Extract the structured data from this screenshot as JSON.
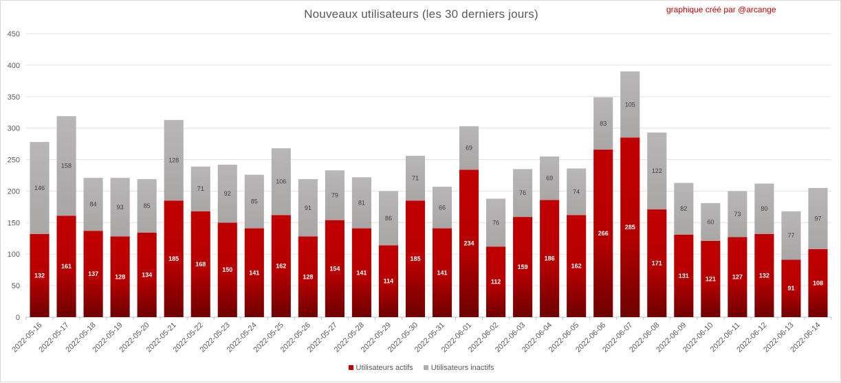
{
  "chart_data": {
    "type": "bar",
    "stacked": true,
    "title": "Nouveaux utilisateurs  (les 30 derniers  jours)",
    "credit": "graphique créé par @arcange",
    "categories": [
      "2022-05-16",
      "2022-05-17",
      "2022-05-18",
      "2022-05-19",
      "2022-05-20",
      "2022-05-21",
      "2022-05-22",
      "2022-05-23",
      "2022-05-24",
      "2022-05-25",
      "2022-05-26",
      "2022-05-27",
      "2022-05-28",
      "2022-05-29",
      "2022-05-30",
      "2022-05-31",
      "2022-06-01",
      "2022-06-02",
      "2022-06-03",
      "2022-06-04",
      "2022-06-05",
      "2022-06-06",
      "2022-06-07",
      "2022-06-08",
      "2022-06-09",
      "2022-06-10",
      "2022-06-11",
      "2022-06-12",
      "2022-06-13",
      "2022-06-14"
    ],
    "series": [
      {
        "name": "Utilisateurs actifs",
        "color": "#c00000",
        "values": [
          132,
          161,
          137,
          128,
          134,
          185,
          168,
          150,
          141,
          162,
          128,
          154,
          141,
          114,
          185,
          141,
          234,
          112,
          159,
          186,
          162,
          266,
          285,
          171,
          131,
          121,
          127,
          132,
          91,
          108
        ]
      },
      {
        "name": "Utilisateurs inactifs",
        "color": "#b0adad",
        "values": [
          146,
          158,
          84,
          93,
          85,
          128,
          71,
          92,
          85,
          106,
          91,
          79,
          81,
          86,
          71,
          66,
          69,
          76,
          76,
          69,
          74,
          83,
          105,
          122,
          82,
          60,
          73,
          80,
          77,
          97
        ]
      }
    ],
    "ylim": [
      0,
      450
    ],
    "yticks": [
      0,
      50,
      100,
      150,
      200,
      250,
      300,
      350,
      400,
      450
    ],
    "grid": true,
    "legend_position": "bottom"
  }
}
